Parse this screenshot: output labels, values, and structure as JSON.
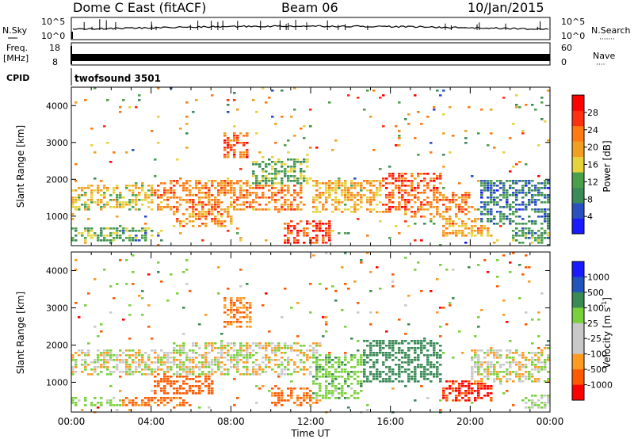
{
  "header": {
    "station": "Dome C East (fitACF)",
    "beam": "Beam 06",
    "date": "10/Jan/2015"
  },
  "summary": {
    "nsky": {
      "label": "N.Sky",
      "tick_top": "10^5",
      "tick_bottom": "10^0"
    },
    "nsearch": {
      "label": "N.Search",
      "dots": "·······",
      "tick_top": "10^5",
      "tick_bottom": "10^0"
    },
    "freq": {
      "label_line1": "Freq.",
      "label_line2": "[MHz]",
      "tick_top": "18",
      "tick_bottom": "8"
    },
    "nave": {
      "label": "Nave",
      "dots": "····",
      "tick_top": "60",
      "tick_bottom": "0"
    },
    "cpid": {
      "label": "CPID",
      "value": "twofsound 3501"
    }
  },
  "colors": {
    "power_scale": [
      "#1a1aff",
      "#2a4fbf",
      "#3b8a5a",
      "#4aa04a",
      "#e6d23a",
      "#f0a020",
      "#ff7a10",
      "#ff3010",
      "#ff0000"
    ],
    "velocity_scale": [
      "#ff0000",
      "#ff5a00",
      "#ff9a20",
      "#c8c8c8",
      "#c8c8c8",
      "#7ad03c",
      "#3a8a55",
      "#2255bb",
      "#1a1aff"
    ]
  },
  "chart_data": [
    {
      "type": "heatmap",
      "name": "power",
      "xlabel": "",
      "ylabel": "Slant Range [km]",
      "xlim": [
        0,
        24
      ],
      "ylim": [
        200,
        4500
      ],
      "yticks": [
        1000,
        2000,
        3000,
        4000
      ],
      "colorbar": {
        "label": "Power [dB]",
        "range": [
          0,
          32
        ],
        "ticks": [
          "4",
          "8",
          "12",
          "16",
          "20",
          "24",
          "28"
        ],
        "tick_values": [
          4,
          8,
          12,
          16,
          20,
          24,
          28
        ]
      },
      "bands": [
        {
          "t0": 0.0,
          "t1": 3.8,
          "r0": 350,
          "r1": 700,
          "v": 13
        },
        {
          "t0": 0.0,
          "t1": 4.2,
          "r0": 1200,
          "r1": 1900,
          "v": 17
        },
        {
          "t0": 2.5,
          "t1": 4.5,
          "r0": 350,
          "r1": 650,
          "v": 11
        },
        {
          "t0": 4.0,
          "t1": 11.5,
          "r0": 1200,
          "r1": 2000,
          "v": 22
        },
        {
          "t0": 5.0,
          "t1": 8.0,
          "r0": 700,
          "r1": 1200,
          "v": 21
        },
        {
          "t0": 7.5,
          "t1": 8.8,
          "r0": 2600,
          "r1": 3300,
          "v": 25
        },
        {
          "t0": 9.0,
          "t1": 11.8,
          "r0": 1900,
          "r1": 2600,
          "v": 12
        },
        {
          "t0": 10.5,
          "t1": 13.0,
          "r0": 300,
          "r1": 900,
          "v": 27
        },
        {
          "t0": 12.0,
          "t1": 16.0,
          "r0": 1100,
          "r1": 2000,
          "v": 19
        },
        {
          "t0": 15.5,
          "t1": 18.5,
          "r0": 1200,
          "r1": 2200,
          "v": 25
        },
        {
          "t0": 17.0,
          "t1": 20.0,
          "r0": 1000,
          "r1": 1700,
          "v": 23
        },
        {
          "t0": 18.5,
          "t1": 21.0,
          "r0": 500,
          "r1": 1000,
          "v": 20
        },
        {
          "t0": 20.5,
          "t1": 24.0,
          "r0": 800,
          "r1": 2000,
          "v": 8
        },
        {
          "t0": 22.0,
          "t1": 24.0,
          "r0": 300,
          "r1": 700,
          "v": 11
        }
      ]
    },
    {
      "type": "heatmap",
      "name": "velocity",
      "xlabel": "Time UT",
      "ylabel": "Slant Range [km]",
      "xlim": [
        0,
        24
      ],
      "ylim": [
        200,
        4500
      ],
      "xticks": [
        "00:00",
        "04:00",
        "08:00",
        "12:00",
        "16:00",
        "20:00",
        "00:00"
      ],
      "xtick_values": [
        0,
        4,
        8,
        12,
        16,
        20,
        24
      ],
      "yticks": [
        1000,
        2000,
        3000,
        4000
      ],
      "colorbar": {
        "label": "Velocity [m s",
        "label_exponent": "-1",
        "label_close": "]",
        "ticks": [
          "1000",
          "500",
          "100",
          "25",
          "-25",
          "-100",
          "-500",
          "-1000"
        ]
      },
      "bands": [
        {
          "t0": 0.0,
          "t1": 2.5,
          "r0": 350,
          "r1": 650,
          "v": 150
        },
        {
          "t0": 0.0,
          "t1": 5.0,
          "r0": 1200,
          "r1": 1900,
          "v": 0
        },
        {
          "t0": 2.5,
          "t1": 6.0,
          "r0": 350,
          "r1": 650,
          "v": -400
        },
        {
          "t0": 4.0,
          "t1": 7.0,
          "r0": 700,
          "r1": 1300,
          "v": -450
        },
        {
          "t0": 5.0,
          "t1": 12.5,
          "r0": 1200,
          "r1": 2100,
          "v": 0
        },
        {
          "t0": 7.5,
          "t1": 9.0,
          "r0": 2500,
          "r1": 3300,
          "v": -300
        },
        {
          "t0": 10.0,
          "t1": 12.5,
          "r0": 400,
          "r1": 900,
          "v": -350
        },
        {
          "t0": 12.0,
          "t1": 14.5,
          "r0": 600,
          "r1": 1800,
          "v": 200
        },
        {
          "t0": 14.5,
          "t1": 18.5,
          "r0": 1000,
          "r1": 2200,
          "v": 500
        },
        {
          "t0": 18.5,
          "t1": 21.0,
          "r0": 500,
          "r1": 1100,
          "v": -800
        },
        {
          "t0": 20.0,
          "t1": 24.0,
          "r0": 1000,
          "r1": 1900,
          "v": 0
        },
        {
          "t0": 22.5,
          "t1": 24.0,
          "r0": 300,
          "r1": 700,
          "v": 100
        }
      ]
    }
  ]
}
